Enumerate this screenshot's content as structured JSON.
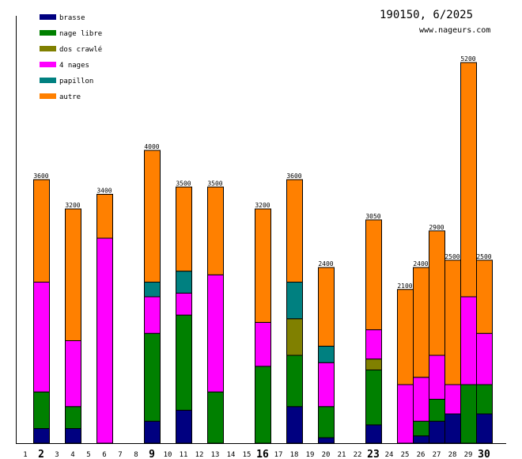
{
  "chart_data": {
    "type": "bar",
    "stacked": true,
    "title": "190150, 6/2025",
    "subtitle": "www.nageurs.com",
    "legend_position": "top-left",
    "categories": [
      "1",
      "2",
      "3",
      "4",
      "5",
      "6",
      "7",
      "8",
      "9",
      "10",
      "11",
      "12",
      "13",
      "14",
      "15",
      "16",
      "17",
      "18",
      "19",
      "20",
      "21",
      "22",
      "23",
      "24",
      "25",
      "26",
      "27",
      "28",
      "29",
      "30"
    ],
    "emphasized_categories": [
      "2",
      "9",
      "16",
      "23",
      "30"
    ],
    "ylim": [
      0,
      5200
    ],
    "series": [
      {
        "name": "brasse",
        "color": "#000080",
        "values": [
          0,
          200,
          0,
          200,
          0,
          0,
          0,
          0,
          300,
          0,
          450,
          0,
          0,
          0,
          0,
          0,
          0,
          500,
          0,
          75,
          0,
          0,
          250,
          0,
          0,
          100,
          300,
          400,
          0,
          400
        ]
      },
      {
        "name": "nage libre",
        "color": "#008000",
        "values": [
          0,
          500,
          0,
          300,
          0,
          0,
          0,
          0,
          1200,
          0,
          1300,
          0,
          700,
          0,
          0,
          1050,
          0,
          700,
          0,
          425,
          0,
          0,
          750,
          0,
          0,
          200,
          300,
          0,
          800,
          400
        ]
      },
      {
        "name": "dos crawlé",
        "color": "#808000",
        "values": [
          0,
          0,
          0,
          0,
          0,
          0,
          0,
          0,
          0,
          0,
          0,
          0,
          0,
          0,
          0,
          0,
          0,
          500,
          0,
          0,
          0,
          0,
          150,
          0,
          0,
          0,
          0,
          0,
          0,
          0
        ]
      },
      {
        "name": "4 nages",
        "color": "#ff00ff",
        "values": [
          0,
          1500,
          0,
          900,
          0,
          2800,
          0,
          0,
          500,
          0,
          300,
          0,
          1600,
          0,
          0,
          600,
          0,
          0,
          0,
          600,
          0,
          0,
          400,
          0,
          800,
          600,
          600,
          400,
          1200,
          700
        ]
      },
      {
        "name": "papillon",
        "color": "#008080",
        "values": [
          0,
          0,
          0,
          0,
          0,
          0,
          0,
          0,
          200,
          0,
          300,
          0,
          0,
          0,
          0,
          0,
          0,
          500,
          0,
          225,
          0,
          0,
          0,
          0,
          0,
          0,
          0,
          0,
          0,
          0
        ]
      },
      {
        "name": "autre",
        "color": "#ff8000",
        "values": [
          0,
          1400,
          0,
          1800,
          0,
          600,
          0,
          0,
          1800,
          0,
          1150,
          0,
          1200,
          0,
          0,
          1550,
          0,
          1400,
          0,
          1075,
          0,
          0,
          1500,
          0,
          1300,
          1500,
          1700,
          1700,
          3200,
          1000
        ]
      }
    ],
    "totals": [
      0,
      3600,
      0,
      3200,
      0,
      3400,
      0,
      0,
      4000,
      0,
      3500,
      0,
      3500,
      0,
      0,
      3200,
      0,
      3600,
      0,
      2400,
      0,
      0,
      3050,
      0,
      2100,
      2400,
      2900,
      2500,
      5200,
      2500
    ]
  }
}
